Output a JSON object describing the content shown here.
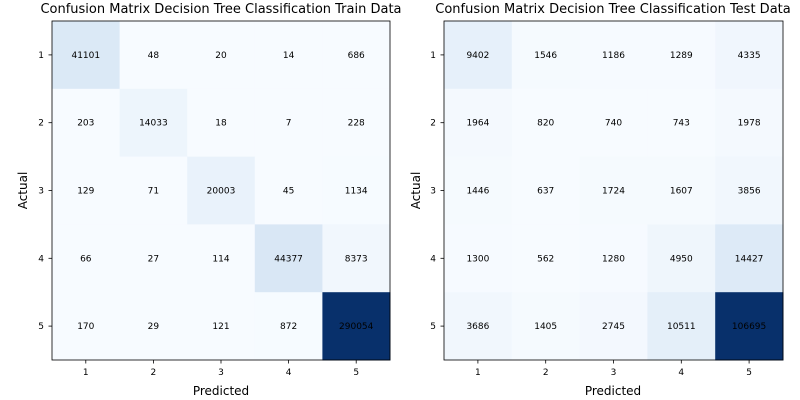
{
  "chart_data": [
    {
      "type": "heatmap",
      "title": "Confusion Matrix Decision Tree Classification Train Data",
      "xlabel": "Predicted",
      "ylabel": "Actual",
      "x_ticks": [
        "1",
        "2",
        "3",
        "4",
        "5"
      ],
      "y_ticks": [
        "1",
        "2",
        "3",
        "4",
        "5"
      ],
      "colormap": "Blues",
      "matrix": [
        [
          41101,
          48,
          20,
          14,
          686
        ],
        [
          203,
          14033,
          18,
          7,
          228
        ],
        [
          129,
          71,
          20003,
          45,
          1134
        ],
        [
          66,
          27,
          114,
          44377,
          8373
        ],
        [
          170,
          29,
          121,
          872,
          290054
        ]
      ]
    },
    {
      "type": "heatmap",
      "title": "Confusion Matrix Decision Tree Classification Test Data",
      "xlabel": "Predicted",
      "ylabel": "Actual",
      "x_ticks": [
        "1",
        "2",
        "3",
        "4",
        "5"
      ],
      "y_ticks": [
        "1",
        "2",
        "3",
        "4",
        "5"
      ],
      "colormap": "Blues",
      "matrix": [
        [
          9402,
          1546,
          1186,
          1289,
          4335
        ],
        [
          1964,
          820,
          740,
          743,
          1978
        ],
        [
          1446,
          637,
          1724,
          1607,
          3856
        ],
        [
          1300,
          562,
          1280,
          4950,
          14427
        ],
        [
          3686,
          1405,
          2745,
          10511,
          106695
        ]
      ]
    }
  ]
}
